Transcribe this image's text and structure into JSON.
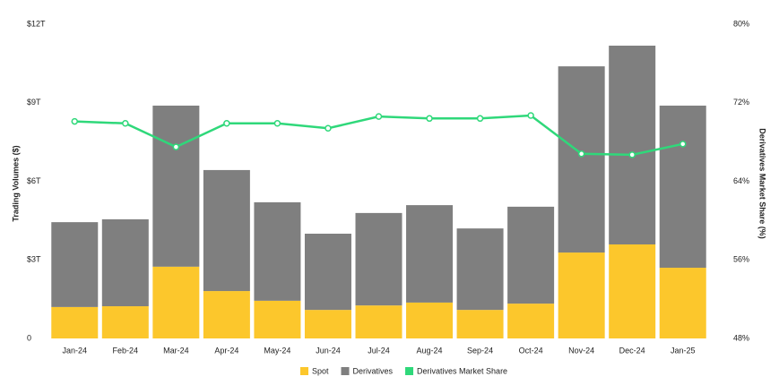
{
  "chart_data": {
    "type": "bar",
    "categories": [
      "Jan-24",
      "Feb-24",
      "Mar-24",
      "Apr-24",
      "May-24",
      "Jun-24",
      "Jul-24",
      "Aug-24",
      "Sep-24",
      "Oct-24",
      "Nov-24",
      "Dec-24",
      "Jan-25"
    ],
    "y_label": "Trading Volumes ($)",
    "y2_label": "Derivatives Market Share (%)",
    "ylim": [
      0,
      12
    ],
    "yticks": [
      0,
      {
        "value": 3,
        "label": "$3T"
      },
      {
        "value": 6,
        "label": "$6T"
      },
      {
        "value": 9,
        "label": "$9T"
      },
      {
        "value": 12,
        "label": "$12T"
      }
    ],
    "y2lim": [
      48,
      80
    ],
    "y2ticks": [
      {
        "value": 48,
        "label": "48%"
      },
      {
        "value": 56,
        "label": "56%"
      },
      {
        "value": 64,
        "label": "64%"
      },
      {
        "value": 72,
        "label": "72%"
      },
      {
        "value": 80,
        "label": "80%"
      }
    ],
    "stacked": true,
    "series": [
      {
        "name": "Spot",
        "color": "#fcc72c",
        "values": [
          1.2,
          1.23,
          2.74,
          1.81,
          1.44,
          1.09,
          1.26,
          1.37,
          1.09,
          1.33,
          3.28,
          3.59,
          2.7
        ]
      },
      {
        "name": "Derivatives",
        "color": "#7f7f7f",
        "values": [
          3.24,
          3.32,
          6.15,
          4.62,
          3.76,
          2.91,
          3.53,
          3.72,
          3.11,
          3.7,
          7.11,
          7.59,
          6.19
        ]
      },
      {
        "name": "Derivatives Market Share",
        "color": "#2fd87a",
        "type": "line",
        "axis": "y2",
        "values": [
          70.1,
          69.9,
          67.5,
          69.9,
          69.9,
          69.4,
          70.6,
          70.4,
          70.4,
          70.7,
          66.8,
          66.7,
          67.8
        ]
      }
    ]
  }
}
